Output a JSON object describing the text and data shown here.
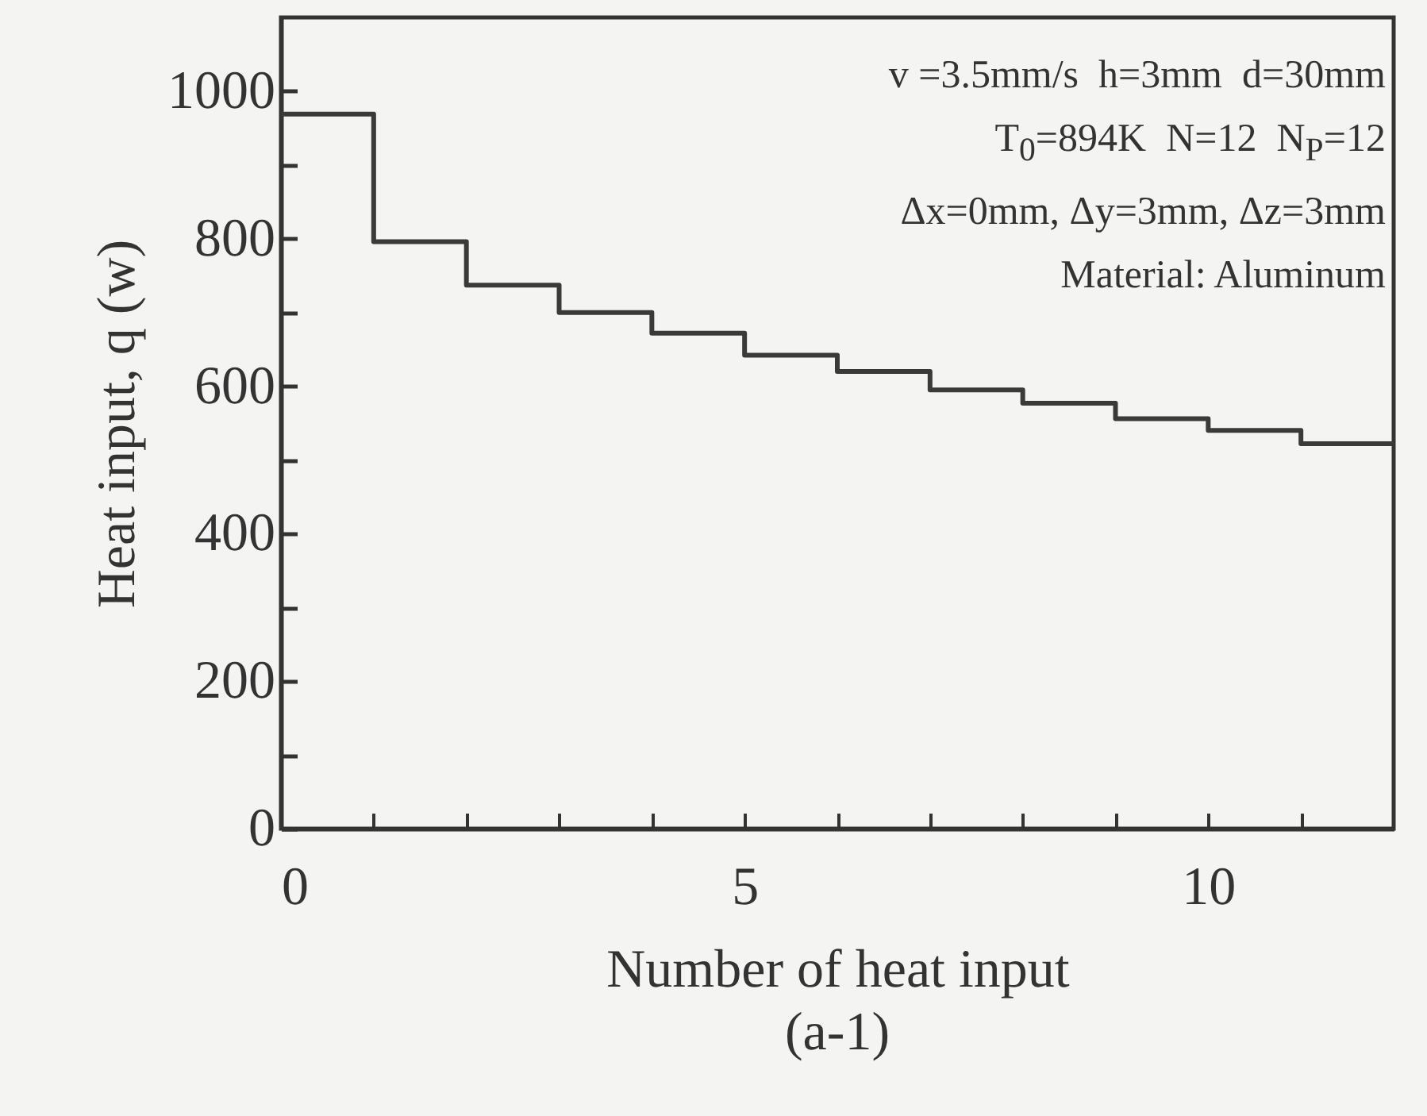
{
  "chart_data": {
    "type": "step",
    "title": "(a-1)",
    "xlabel": "Number of heat input",
    "ylabel": "Heat input, q (w)",
    "x": [
      0,
      1,
      2,
      3,
      4,
      5,
      6,
      7,
      8,
      9,
      10,
      11,
      12
    ],
    "series": [
      {
        "color": "#3a3a3a",
        "values": [
          969,
          796,
          737,
          700,
          672,
          642,
          620,
          595,
          577,
          556,
          540,
          522,
          522
        ]
      }
    ],
    "xlim": [
      0,
      12
    ],
    "xticks": [
      0,
      {
        "value": 1,
        "label": null
      },
      {
        "value": 2,
        "label": null
      },
      {
        "value": 3,
        "label": null
      },
      {
        "value": 4,
        "label": null
      },
      5,
      {
        "value": 6,
        "label": null
      },
      {
        "value": 7,
        "label": null
      },
      {
        "value": 8,
        "label": null
      },
      {
        "value": 9,
        "label": null
      },
      10,
      {
        "value": 11,
        "label": null
      }
    ],
    "ylim": [
      0,
      1100
    ],
    "yticks": [
      0,
      {
        "value": 100,
        "label": null
      },
      200,
      {
        "value": 300,
        "label": null
      },
      400,
      {
        "value": 500,
        "label": null
      },
      600,
      {
        "value": 700,
        "label": null
      },
      800,
      {
        "value": 900,
        "label": null
      },
      1000
    ],
    "annotations": [
      "v =3.5mm/s  h=3mm  d=30mm",
      "T$_{0}$=894K  N=12  N$_{P}$=12",
      "Δx=0mm, Δy=3mm, Δz=3mm",
      "Material: Aluminum"
    ],
    "grid": false,
    "marker": "none",
    "line_style": "solid"
  }
}
